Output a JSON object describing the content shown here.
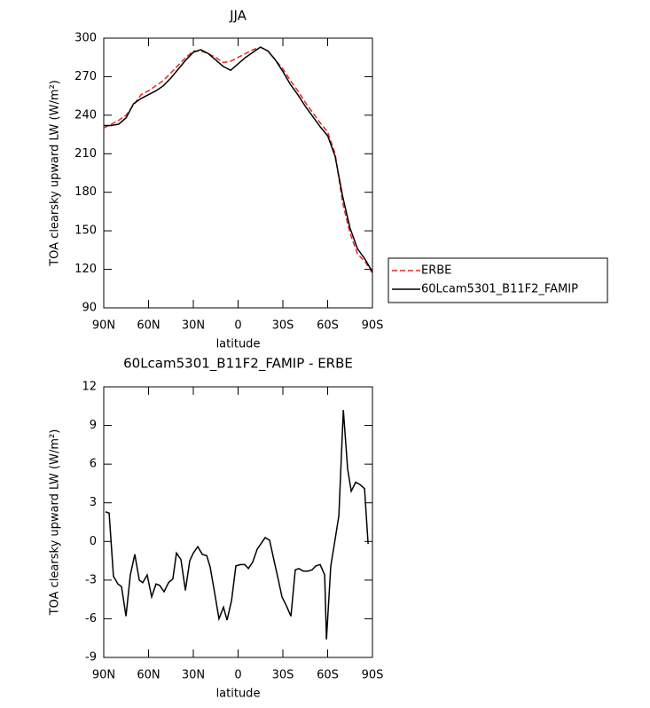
{
  "chart_data": [
    {
      "type": "line",
      "title": "JJA",
      "xlabel": "latitude",
      "ylabel": "TOA clearsky upward LW (W/m²)",
      "xlim": [
        90,
        -90
      ],
      "xticks": [
        {
          "value": 90,
          "label": "90N"
        },
        {
          "value": 60,
          "label": "60N"
        },
        {
          "value": 30,
          "label": "30N"
        },
        0,
        {
          "value": -30,
          "label": "30S"
        },
        {
          "value": -60,
          "label": "60S"
        },
        {
          "value": -90,
          "label": "90S"
        }
      ],
      "ylim": [
        90,
        300
      ],
      "yticks": [
        90,
        120,
        150,
        180,
        210,
        240,
        270,
        300
      ],
      "legend": "right",
      "x": [
        90,
        85,
        80,
        75,
        70,
        65,
        60,
        55,
        50,
        45,
        40,
        35,
        30,
        25,
        20,
        15,
        10,
        5,
        0,
        -5,
        -10,
        -15,
        -20,
        -25,
        -30,
        -35,
        -40,
        -45,
        -50,
        -55,
        -60,
        -65,
        -70,
        -75,
        -80,
        -85,
        -90
      ],
      "series": [
        {
          "name": "ERBE",
          "color": "#e8261f",
          "style": "dashed",
          "values": [
            230,
            233,
            236,
            240,
            248,
            256,
            259,
            263,
            267,
            273,
            279,
            285,
            290,
            290,
            288,
            285,
            281,
            282,
            285,
            288,
            291,
            293,
            290,
            283,
            276,
            267,
            259,
            250,
            242,
            234,
            227,
            210,
            172,
            148,
            132,
            126,
            117
          ]
        },
        {
          "name": "60Lcam5301_B11F2_FAMIP",
          "color": "#000000",
          "style": "solid",
          "values": [
            232,
            232,
            233,
            238,
            249,
            253,
            256,
            259,
            263,
            269,
            276,
            283,
            289,
            291,
            288,
            283,
            278,
            275,
            280,
            285,
            289,
            293,
            290,
            283,
            274,
            264,
            256,
            247,
            239,
            231,
            224,
            208,
            177,
            152,
            136,
            128,
            118
          ]
        }
      ]
    },
    {
      "type": "line",
      "title": "60Lcam5301_B11F2_FAMIP - ERBE",
      "xlabel": "latitude",
      "ylabel": "TOA clearsky upward LW (W/m²)",
      "xlim": [
        90,
        -90
      ],
      "xticks": [
        {
          "value": 90,
          "label": "90N"
        },
        {
          "value": 60,
          "label": "60N"
        },
        {
          "value": 30,
          "label": "30N"
        },
        0,
        {
          "value": -30,
          "label": "30S"
        },
        {
          "value": -60,
          "label": "60S"
        },
        {
          "value": -90,
          "label": "90S"
        }
      ],
      "ylim": [
        -9,
        12
      ],
      "yticks": [
        -9,
        -6,
        -3,
        0,
        3,
        6,
        9,
        12
      ],
      "color": "#000000",
      "x": [
        88.8,
        86.4,
        83.5,
        80.5,
        78.1,
        75.1,
        72.2,
        69.2,
        66.2,
        63.9,
        60.9,
        57.9,
        55,
        52.6,
        49.6,
        46.6,
        43.7,
        41.3,
        38.3,
        35.3,
        32.4,
        30,
        27,
        24,
        21,
        18.7,
        15.7,
        12.8,
        9.8,
        7.4,
        4.4,
        1.5,
        -1.5,
        -4.5,
        -6.9,
        -9.8,
        -12.8,
        -15.8,
        -18.1,
        -21.1,
        -24.1,
        -27,
        -29.4,
        -32.4,
        -35.4,
        -38.3,
        -40.7,
        -43.7,
        -46.7,
        -49.6,
        -52,
        -55,
        -58,
        -59.2,
        -62.1,
        -64.5,
        -67.5,
        -70.5,
        -73.4,
        -75.8,
        -78.8,
        -81.8,
        -84.7,
        -87.1
      ],
      "values": [
        2.3,
        2.2,
        -2.7,
        -3.3,
        -3.5,
        -5.8,
        -2.6,
        -1.0,
        -3.0,
        -3.2,
        -2.6,
        -4.3,
        -3.3,
        -3.4,
        -3.9,
        -3.2,
        -2.9,
        -0.9,
        -1.4,
        -3.8,
        -1.5,
        -0.9,
        -0.4,
        -1.0,
        -1.1,
        -2.0,
        -4.0,
        -6.0,
        -5.1,
        -6.1,
        -4.6,
        -1.9,
        -1.8,
        -1.8,
        -2.1,
        -1.6,
        -0.6,
        -0.1,
        0.3,
        0.1,
        -1.5,
        -3.0,
        -4.3,
        -5.0,
        -5.8,
        -2.2,
        -2.1,
        -2.3,
        -2.3,
        -2.2,
        -1.9,
        -1.8,
        -2.6,
        -7.6,
        -1.9,
        -0.2,
        2.0,
        10.2,
        5.6,
        3.9,
        4.6,
        4.4,
        4.1,
        -0.2
      ]
    }
  ]
}
